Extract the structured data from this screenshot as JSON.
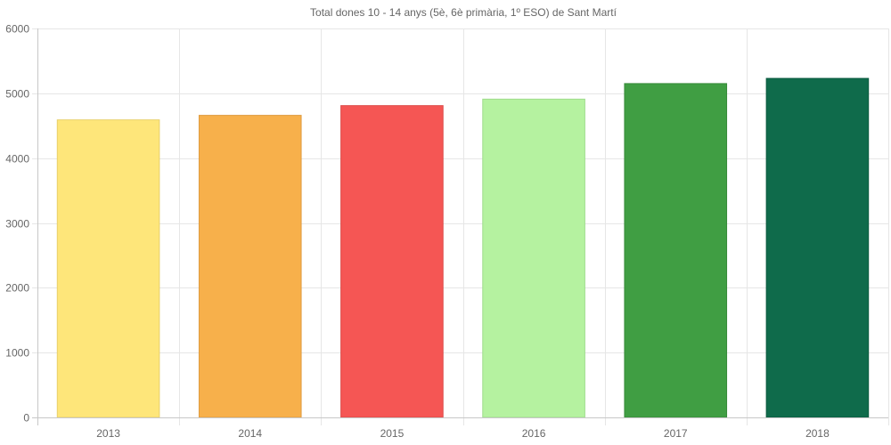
{
  "chart_data": {
    "type": "bar",
    "title": "Total dones 10 - 14 anys (5è, 6è primària, 1º ESO) de Sant Martí",
    "xlabel": "",
    "ylabel": "",
    "categories": [
      "2013",
      "2014",
      "2015",
      "2016",
      "2017",
      "2018"
    ],
    "values": [
      4590,
      4660,
      4810,
      4910,
      5150,
      5230
    ],
    "colors": [
      "#fee67a",
      "#f7b04b",
      "#f55654",
      "#b5f2a0",
      "#409e43",
      "#0f6b4b"
    ],
    "border_colors": [
      "#e8d06a",
      "#df9c40",
      "#dc4a48",
      "#9fdc8c",
      "#378a3a",
      "#0c5a3f"
    ],
    "ylim": [
      0,
      6000
    ],
    "yticks": [
      0,
      1000,
      2000,
      3000,
      4000,
      5000,
      6000
    ],
    "grid": true,
    "legend": "none"
  }
}
